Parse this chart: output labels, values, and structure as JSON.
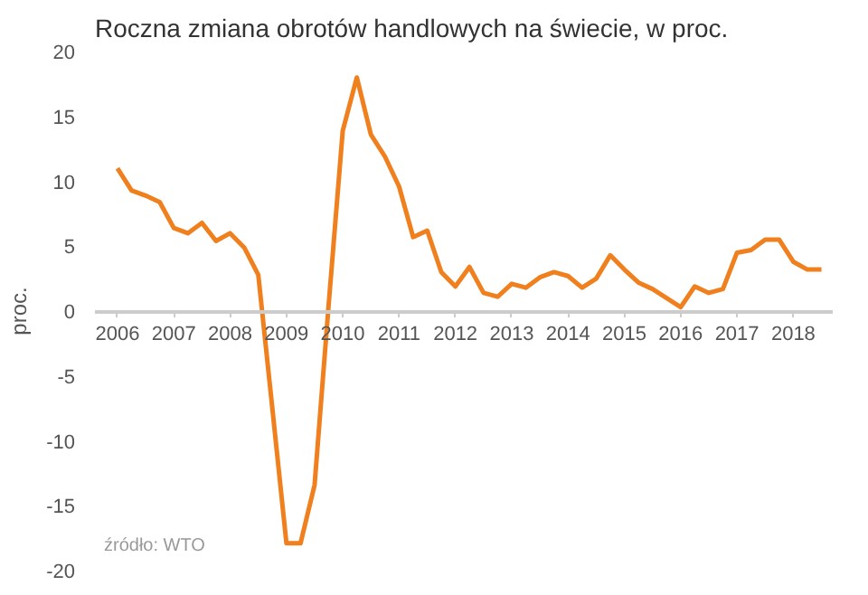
{
  "chart_data": {
    "type": "line",
    "title": "Roczna zmiana obrotów handlowych na świecie, w proc.",
    "ylabel": "proc.",
    "annotations": [
      "źródło: WTO"
    ],
    "x": [
      2006,
      2006.25,
      2006.5,
      2006.75,
      2007,
      2007.25,
      2007.5,
      2007.75,
      2008,
      2008.25,
      2008.5,
      2008.75,
      2009,
      2009.25,
      2009.5,
      2009.75,
      2010,
      2010.25,
      2010.5,
      2010.75,
      2011,
      2011.25,
      2011.5,
      2011.75,
      2012,
      2012.25,
      2012.5,
      2012.75,
      2013,
      2013.25,
      2013.5,
      2013.75,
      2014,
      2014.25,
      2014.5,
      2014.75,
      2015,
      2015.25,
      2015.5,
      2015.75,
      2016,
      2016.25,
      2016.5,
      2016.75,
      2017,
      2017.25,
      2017.5,
      2017.75,
      2018,
      2018.25,
      2018.5
    ],
    "series": [
      {
        "color": "#f07f1e",
        "values": [
          11,
          9.3,
          8.9,
          8.4,
          6.4,
          6.0,
          6.8,
          5.4,
          6.0,
          4.9,
          2.8,
          -7.5,
          -17.9,
          -17.9,
          -13.4,
          0.5,
          13.9,
          18.0,
          13.6,
          11.9,
          9.6,
          5.7,
          6.2,
          3.0,
          1.9,
          3.4,
          1.4,
          1.1,
          2.1,
          1.8,
          2.6,
          3.0,
          2.7,
          1.8,
          2.5,
          4.3,
          3.2,
          2.2,
          1.7,
          1.0,
          0.3,
          1.9,
          1.4,
          1.7,
          4.5,
          4.7,
          5.5,
          5.5,
          3.8,
          3.2,
          3.2
        ]
      }
    ],
    "xlim": [
      2005.6,
      2018.7
    ],
    "ylim": [
      -20,
      20
    ],
    "xticks": [
      2006,
      2007,
      2008,
      2009,
      2010,
      2011,
      2012,
      2013,
      2014,
      2015,
      2016,
      2017,
      2018
    ],
    "yticks": [
      -20,
      -15,
      -10,
      -5,
      0,
      5,
      10,
      15,
      20
    ],
    "grid": false,
    "marker": "none",
    "line_style": "solid"
  }
}
